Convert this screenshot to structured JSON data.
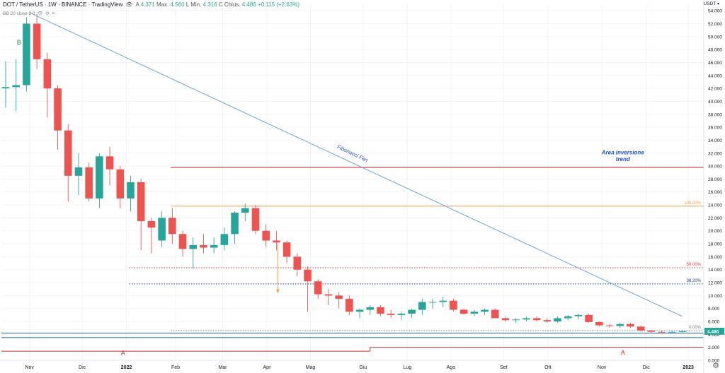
{
  "header": {
    "symbol": "DOT / TetherUS · 1W · BINANCE · TradingView",
    "eye_icon": "eye-icon",
    "ohlc_open_label": "A",
    "ohlc_open": "4.371",
    "ohlc_high_label": "H",
    "ohlc_high": "4.560",
    "ohlc_low_label": "L",
    "ohlc_low_label_full": "Min.",
    "ohlc_low": "4.316",
    "ohlc_close_label": "C",
    "ohlc_close_label_full": "Chius.",
    "ohlc_close": "4.486",
    "change": "+0.115 (+2.63%)",
    "max_label": "Max."
  },
  "indicator": {
    "label": "BB 20 close 2 0"
  },
  "axis": {
    "currency": "USDT"
  },
  "colors": {
    "up": "#26a69a",
    "down": "#ef5350",
    "fan": "#5b9bd5",
    "fib_100": "#f0a050",
    "fib_50": "#e53935",
    "fib_382": "#1e3a8a",
    "resistance": "#b71c1c",
    "support_blue": "#1565c0",
    "label_blue": "#1f4fd1",
    "label_green": "#1b8e3e",
    "label_red": "#d32f2f"
  },
  "chart_data": {
    "type": "candlestick",
    "title": "DOT / TetherUS · 1W · BINANCE",
    "ylim": [
      0,
      55
    ],
    "yticks": [
      "0.000",
      "2.000",
      "4.000",
      "6.000",
      "8.000",
      "10.000",
      "12.000",
      "14.000",
      "16.000",
      "18.000",
      "20.000",
      "22.000",
      "24.000",
      "26.000",
      "28.000",
      "30.000",
      "32.000",
      "34.000",
      "36.000",
      "38.000",
      "40.000",
      "42.000",
      "44.000",
      "46.000",
      "48.000",
      "50.000",
      "52.000",
      "54.000"
    ],
    "x_labels": [
      "Nov",
      "Dic",
      "2022",
      "Feb",
      "Mar",
      "Apr",
      "Mag",
      "Giu",
      "Lug",
      "Ago",
      "Set",
      "Ott",
      "Nov",
      "Dic",
      "2023"
    ],
    "candles": [
      {
        "o": 42.0,
        "h": 46.2,
        "l": 39.0,
        "c": 42.2
      },
      {
        "o": 42.2,
        "h": 46.5,
        "l": 38.5,
        "c": 42.5
      },
      {
        "o": 42.5,
        "h": 53.0,
        "l": 41.5,
        "c": 52.0
      },
      {
        "o": 52.0,
        "h": 53.5,
        "l": 45.0,
        "c": 46.5
      },
      {
        "o": 46.5,
        "h": 47.5,
        "l": 37.5,
        "c": 42.0
      },
      {
        "o": 42.0,
        "h": 42.5,
        "l": 32.5,
        "c": 35.5
      },
      {
        "o": 35.5,
        "h": 36.5,
        "l": 24.5,
        "c": 28.5
      },
      {
        "o": 28.5,
        "h": 32.0,
        "l": 25.5,
        "c": 29.8
      },
      {
        "o": 29.8,
        "h": 30.5,
        "l": 24.5,
        "c": 25.0
      },
      {
        "o": 25.0,
        "h": 32.0,
        "l": 23.5,
        "c": 31.5
      },
      {
        "o": 31.5,
        "h": 33.0,
        "l": 27.0,
        "c": 29.5
      },
      {
        "o": 29.5,
        "h": 30.0,
        "l": 23.5,
        "c": 25.0
      },
      {
        "o": 25.0,
        "h": 28.5,
        "l": 23.0,
        "c": 27.5
      },
      {
        "o": 27.5,
        "h": 28.0,
        "l": 17.0,
        "c": 21.5
      },
      {
        "o": 21.5,
        "h": 22.0,
        "l": 16.5,
        "c": 20.5
      },
      {
        "o": 18.5,
        "h": 23.0,
        "l": 17.5,
        "c": 22.0
      },
      {
        "o": 22.0,
        "h": 23.5,
        "l": 18.0,
        "c": 19.5
      },
      {
        "o": 19.5,
        "h": 20.0,
        "l": 16.0,
        "c": 17.2
      },
      {
        "o": 17.2,
        "h": 19.0,
        "l": 14.2,
        "c": 17.8
      },
      {
        "o": 17.8,
        "h": 19.5,
        "l": 16.5,
        "c": 17.4
      },
      {
        "o": 17.4,
        "h": 19.0,
        "l": 16.5,
        "c": 17.8
      },
      {
        "o": 17.8,
        "h": 20.5,
        "l": 17.0,
        "c": 19.5
      },
      {
        "o": 19.5,
        "h": 23.0,
        "l": 18.0,
        "c": 22.8
      },
      {
        "o": 22.8,
        "h": 24.2,
        "l": 21.5,
        "c": 23.5
      },
      {
        "o": 23.5,
        "h": 24.0,
        "l": 19.5,
        "c": 20.0
      },
      {
        "o": 20.0,
        "h": 21.0,
        "l": 17.5,
        "c": 18.5
      },
      {
        "o": 18.5,
        "h": 20.0,
        "l": 17.0,
        "c": 18.2
      },
      {
        "o": 18.2,
        "h": 18.5,
        "l": 15.0,
        "c": 16.0
      },
      {
        "o": 16.0,
        "h": 16.5,
        "l": 13.0,
        "c": 14.0
      },
      {
        "o": 14.0,
        "h": 14.5,
        "l": 7.5,
        "c": 12.2
      },
      {
        "o": 12.2,
        "h": 12.5,
        "l": 9.5,
        "c": 10.2
      },
      {
        "o": 10.2,
        "h": 11.0,
        "l": 8.5,
        "c": 10.0
      },
      {
        "o": 10.0,
        "h": 10.5,
        "l": 8.0,
        "c": 9.5
      },
      {
        "o": 9.5,
        "h": 10.0,
        "l": 7.0,
        "c": 7.5
      },
      {
        "o": 7.5,
        "h": 8.0,
        "l": 6.5,
        "c": 7.8
      },
      {
        "o": 7.8,
        "h": 8.5,
        "l": 7.0,
        "c": 8.2
      },
      {
        "o": 8.2,
        "h": 8.5,
        "l": 6.8,
        "c": 7.2
      },
      {
        "o": 7.2,
        "h": 7.8,
        "l": 6.5,
        "c": 7.0
      },
      {
        "o": 7.0,
        "h": 7.5,
        "l": 6.2,
        "c": 7.2
      },
      {
        "o": 7.2,
        "h": 8.0,
        "l": 6.5,
        "c": 7.8
      },
      {
        "o": 7.8,
        "h": 9.5,
        "l": 7.0,
        "c": 9.0
      },
      {
        "o": 9.0,
        "h": 9.5,
        "l": 8.0,
        "c": 9.0
      },
      {
        "o": 9.0,
        "h": 9.8,
        "l": 8.2,
        "c": 9.2
      },
      {
        "o": 9.2,
        "h": 9.5,
        "l": 7.5,
        "c": 7.8
      },
      {
        "o": 7.8,
        "h": 8.0,
        "l": 7.0,
        "c": 7.2
      },
      {
        "o": 7.2,
        "h": 7.8,
        "l": 6.8,
        "c": 7.5
      },
      {
        "o": 7.5,
        "h": 8.0,
        "l": 7.0,
        "c": 7.8
      },
      {
        "o": 7.8,
        "h": 8.0,
        "l": 6.8,
        "c": 6.5
      },
      {
        "o": 6.5,
        "h": 6.8,
        "l": 6.0,
        "c": 6.2
      },
      {
        "o": 6.2,
        "h": 6.5,
        "l": 5.8,
        "c": 6.3
      },
      {
        "o": 6.3,
        "h": 6.8,
        "l": 6.0,
        "c": 6.5
      },
      {
        "o": 6.5,
        "h": 6.8,
        "l": 6.0,
        "c": 6.2
      },
      {
        "o": 6.2,
        "h": 6.5,
        "l": 5.8,
        "c": 6.0
      },
      {
        "o": 6.0,
        "h": 6.8,
        "l": 5.8,
        "c": 6.5
      },
      {
        "o": 6.5,
        "h": 7.0,
        "l": 6.2,
        "c": 6.8
      },
      {
        "o": 6.8,
        "h": 7.2,
        "l": 6.3,
        "c": 7.0
      },
      {
        "o": 7.0,
        "h": 7.2,
        "l": 5.8,
        "c": 5.9
      },
      {
        "o": 5.9,
        "h": 6.0,
        "l": 5.2,
        "c": 5.4
      },
      {
        "o": 5.4,
        "h": 5.6,
        "l": 5.0,
        "c": 5.3
      },
      {
        "o": 5.3,
        "h": 5.8,
        "l": 5.0,
        "c": 5.6
      },
      {
        "o": 5.6,
        "h": 5.8,
        "l": 5.0,
        "c": 5.2
      },
      {
        "o": 5.2,
        "h": 5.4,
        "l": 4.4,
        "c": 4.6
      },
      {
        "o": 4.6,
        "h": 4.7,
        "l": 4.2,
        "c": 4.4
      },
      {
        "o": 4.4,
        "h": 4.6,
        "l": 4.1,
        "c": 4.3
      },
      {
        "o": 4.3,
        "h": 4.5,
        "l": 4.2,
        "c": 4.4
      },
      {
        "o": 4.4,
        "h": 4.6,
        "l": 4.3,
        "c": 4.486
      }
    ],
    "horizontal_lines": [
      {
        "price": 29.8,
        "color": "#b71c1c",
        "style": "solid",
        "from_index": 16
      },
      {
        "price": 23.8,
        "color": "#f0a050",
        "style": "solid",
        "from_index": 16,
        "label": "100.00%"
      },
      {
        "price": 14.3,
        "color": "#e53935",
        "style": "dotted",
        "from_index": 12,
        "label": "50.00%"
      },
      {
        "price": 11.8,
        "color": "#1e3a8a",
        "style": "dotted",
        "from_index": 12,
        "label": "38.20%"
      },
      {
        "price": 4.6,
        "color": "#787b86",
        "style": "dotted",
        "from_index": 16,
        "label": "0.00%"
      },
      {
        "price": 4.2,
        "color": "#1565c0",
        "style": "solid",
        "from_index": 0
      },
      {
        "price": 3.5,
        "color": "#1565c0",
        "style": "solid",
        "from_index": 0
      }
    ],
    "fan_line": {
      "from": {
        "index": 2,
        "price": 53.5
      },
      "to": {
        "index": 64,
        "price": 6.8
      },
      "label": "Fibonacci Fan"
    },
    "support_step": {
      "segments": [
        {
          "from_index": 0,
          "to_index": 35,
          "price": 1.4
        },
        {
          "from_index": 35,
          "to_index": 65,
          "price": 2.0
        }
      ]
    },
    "annotations": [
      {
        "text": "B",
        "index": 1,
        "price": 48.8,
        "color": "#1b8e3e"
      },
      {
        "text": "A",
        "index": 11,
        "price": 0.8,
        "color": "#d32f2f"
      },
      {
        "text": "A",
        "index": 59,
        "price": 0.9,
        "color": "#d32f2f"
      },
      {
        "text": "Area inversione",
        "index": 59,
        "price": 31.8,
        "color": "#1f4fd1"
      },
      {
        "text": "trend",
        "index": 59,
        "price": 30.8,
        "color": "#1f4fd1"
      }
    ],
    "arrow": {
      "index": 26,
      "from_price": 18.0,
      "to_price": 10.5,
      "color": "#f0a050"
    },
    "last_price": "4.486"
  }
}
